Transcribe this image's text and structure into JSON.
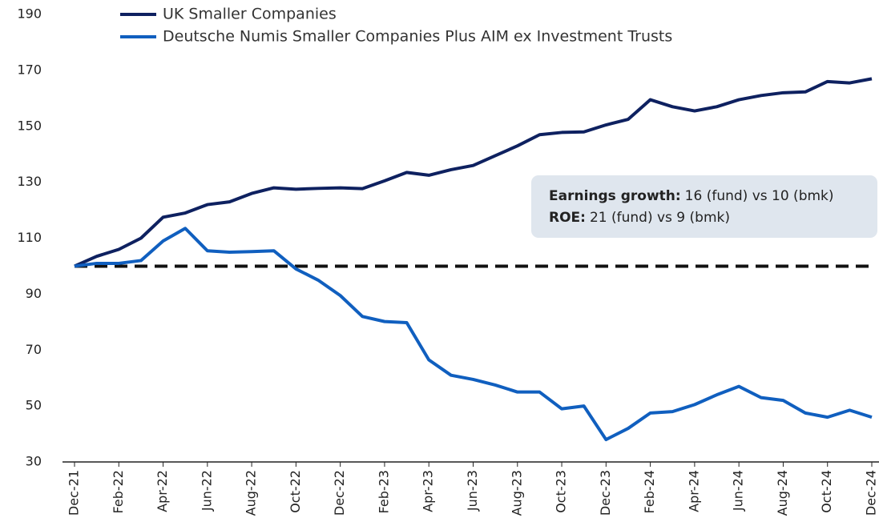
{
  "chart_data": {
    "type": "line",
    "categories": [
      "Dec-21",
      null,
      "Feb-22",
      null,
      "Apr-22",
      null,
      "Jun-22",
      null,
      "Aug-22",
      null,
      "Oct-22",
      null,
      "Dec-22",
      null,
      "Feb-23",
      null,
      "Apr-23",
      null,
      "Jun-23",
      null,
      "Aug-23",
      null,
      "Oct-23",
      null,
      "Dec-23",
      null,
      "Feb-24",
      null,
      "Apr-24",
      null,
      "Jun-24",
      null,
      "Aug-24",
      null,
      "Oct-24",
      null,
      "Dec-24"
    ],
    "series": [
      {
        "name": "UK Smaller Companies",
        "color": "#0e2160",
        "values": [
          100,
          103.5,
          106,
          110,
          117.5,
          119,
          122,
          123,
          126,
          128,
          127.5,
          127.8,
          128,
          127.7,
          130.5,
          133.5,
          132.5,
          134.5,
          136,
          139.5,
          143,
          147,
          147.8,
          148,
          150.5,
          152.5,
          159.5,
          157,
          155.5,
          157,
          159.5,
          161,
          162,
          162.3,
          166,
          165.5,
          167
        ]
      },
      {
        "name": "Deutsche Numis Smaller Companies Plus AIM ex Investment Trusts",
        "color": "#105fbf",
        "values": [
          100,
          101,
          101,
          102,
          109,
          113.5,
          105.5,
          105,
          105.2,
          105.5,
          99,
          95,
          89.5,
          82,
          80.2,
          79.8,
          66.5,
          61,
          59.5,
          57.5,
          55,
          55,
          49,
          50,
          38,
          42,
          47.5,
          48,
          50.5,
          54,
          57,
          53,
          52,
          47.5,
          46,
          48.5,
          46
        ]
      }
    ],
    "reference_line": 100,
    "ylim": [
      30,
      190
    ],
    "yticks": [
      30,
      50,
      70,
      90,
      110,
      130,
      150,
      170,
      190
    ],
    "annotation": {
      "lines": [
        {
          "label": "Earnings growth:",
          "text": "16 (fund) vs 10 (bmk)"
        },
        {
          "label": "ROE:",
          "text": "21 (fund) vs 9 (bmk)"
        }
      ]
    }
  }
}
